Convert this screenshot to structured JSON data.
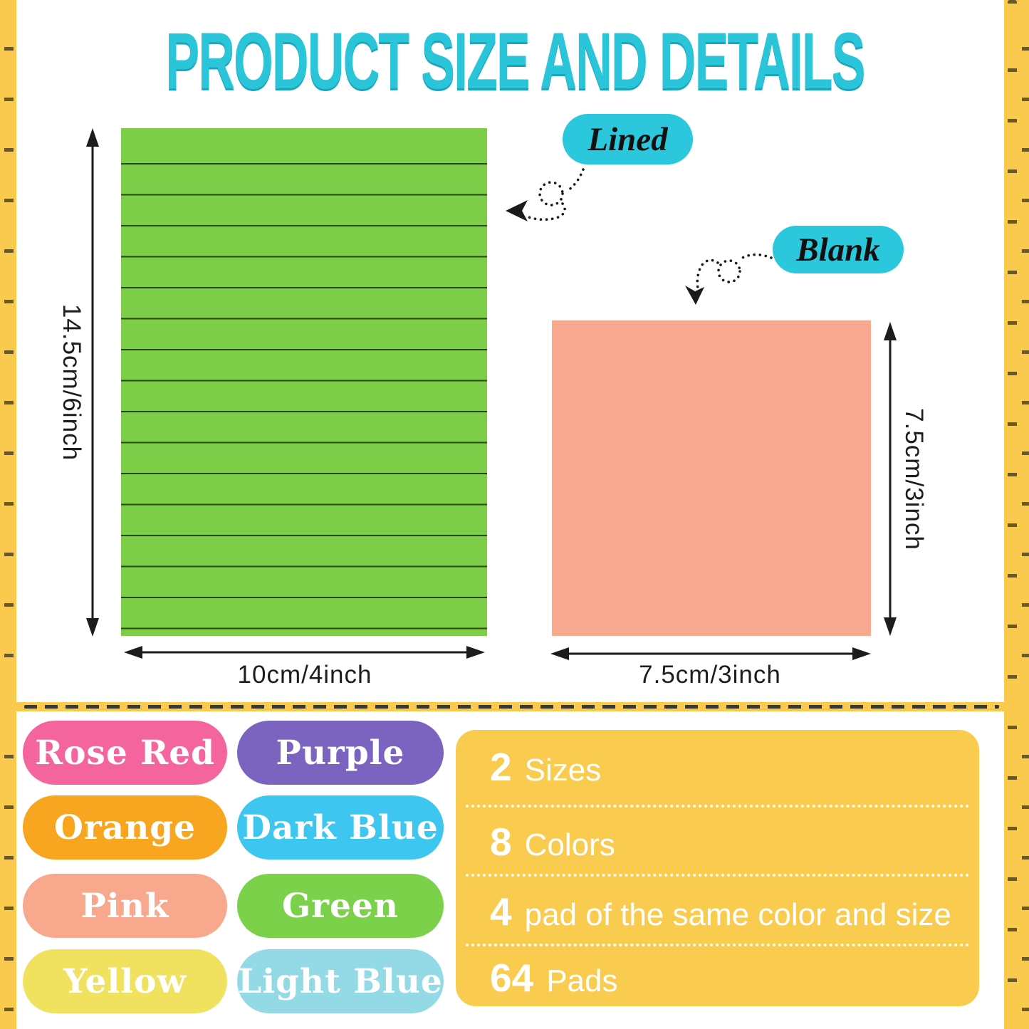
{
  "title": "PRODUCT SIZE AND DETAILS",
  "annotations": {
    "lined_label": "Lined",
    "blank_label": "Blank"
  },
  "dimensions": {
    "lined_height": "14.5cm/6inch",
    "lined_width": "10cm/4inch",
    "blank_height": "7.5cm/3inch",
    "blank_width": "7.5cm/3inch"
  },
  "color_options": [
    {
      "name": "Rose Red",
      "hex": "#f4659d"
    },
    {
      "name": "Purple",
      "hex": "#7a64c0"
    },
    {
      "name": "Orange",
      "hex": "#f8a61f"
    },
    {
      "name": "Dark Blue",
      "hex": "#3dc6ef"
    },
    {
      "name": "Pink",
      "hex": "#f7a88d"
    },
    {
      "name": "Green",
      "hex": "#7cd14b"
    },
    {
      "name": "Yellow",
      "hex": "#f0e25f"
    },
    {
      "name": "Light Blue",
      "hex": "#93dae6"
    }
  ],
  "details": [
    {
      "number": "2",
      "text": "Sizes"
    },
    {
      "number": "8",
      "text": "Colors"
    },
    {
      "number": "4",
      "text": "pad of the same color and size"
    },
    {
      "number": "64",
      "text": "Pads"
    }
  ],
  "palette": {
    "accent_cyan": "#2bc5da",
    "frame_yellow": "#f9ca4e",
    "details_box_yellow": "#f9cc50",
    "lined_note_green": "#7ccd47",
    "note_line_color": "#2b4711",
    "blank_note_peach": "#f8a88e",
    "arrow_black": "#1c1c1c"
  }
}
